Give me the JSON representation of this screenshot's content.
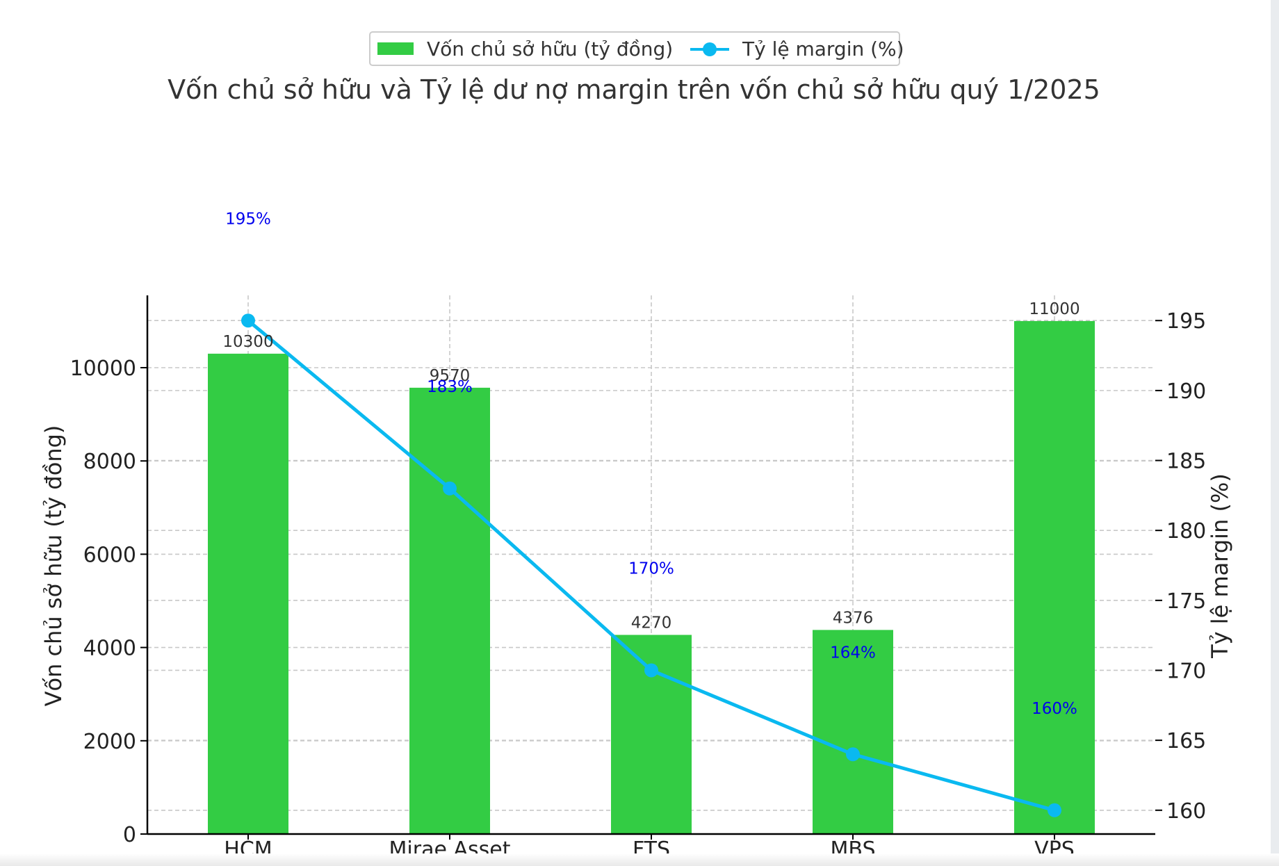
{
  "chart_data": {
    "type": "bar+line",
    "title": "Vốn chủ sở hữu và Tỷ lệ dư nợ margin trên vốn chủ sở hữu quý 1/2025",
    "categories": [
      "HCM",
      "Mirae Asset",
      "FTS",
      "MBS",
      "VPS"
    ],
    "series": [
      {
        "name": "Vốn chủ sở hữu (tỷ đồng)",
        "type": "bar",
        "axis": "left",
        "color": "#33cc44",
        "values": [
          10300,
          9570,
          4270,
          4376,
          11000
        ],
        "labels": [
          "10300",
          "9570",
          "4270",
          "4376",
          "11000"
        ]
      },
      {
        "name": "Tỷ lệ margin (%)",
        "type": "line",
        "axis": "right",
        "color": "#0ab9f0",
        "values": [
          195,
          183,
          170,
          164,
          160
        ],
        "labels": [
          "195%",
          "183%",
          "170%",
          "164%",
          "160%"
        ]
      }
    ],
    "ylabel": "Vốn chủ sở hữu (tỷ đồng)",
    "ylabel_right": "Tỷ lệ margin (%)",
    "ylim": [
      0,
      11550
    ],
    "yticks": [
      0,
      2000,
      4000,
      6000,
      8000,
      10000
    ],
    "ylim_right": [
      158.3,
      196.8
    ],
    "yticks_right": [
      160,
      165,
      170,
      175,
      180,
      185,
      190,
      195
    ],
    "grid": true,
    "legend_position": "top-center"
  }
}
